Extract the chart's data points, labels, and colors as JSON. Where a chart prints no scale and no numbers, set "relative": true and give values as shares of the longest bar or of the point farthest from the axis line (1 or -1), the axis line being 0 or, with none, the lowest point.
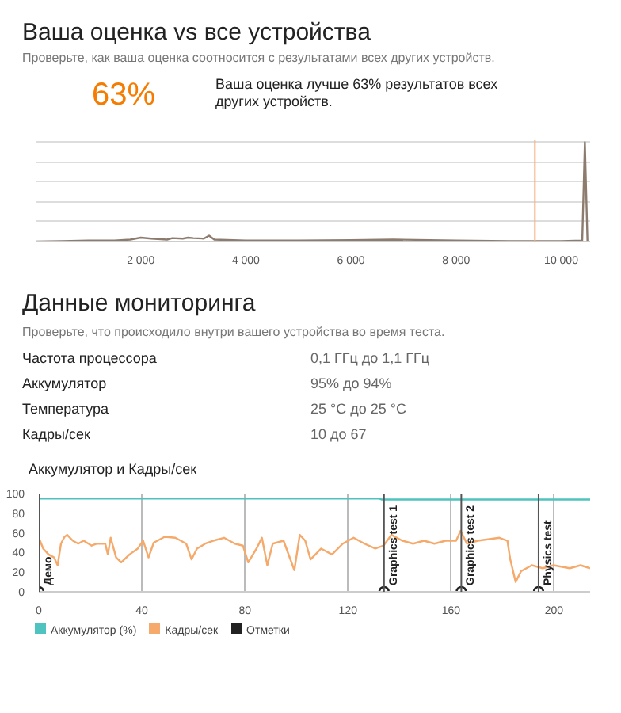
{
  "chart_data": [
    {
      "type": "line",
      "title": "Ваша оценка vs все устройства",
      "subtitle": "Проверьте, как ваша оценка соотносится с результатами всех других устройств.",
      "annotations": [
        "63%",
        "Ваша оценка лучше 63% результатов всех других устройств."
      ],
      "relative": true,
      "grid": "y",
      "xlim": [
        0,
        10550
      ],
      "xticks": [
        {
          "value": 2000,
          "label": "2 000"
        },
        {
          "value": 4000,
          "label": "4 000"
        },
        {
          "value": 6000,
          "label": "6 000"
        },
        {
          "value": 8000,
          "label": "8 000"
        },
        {
          "value": 10000,
          "label": "10 000"
        }
      ],
      "x": [
        0,
        500,
        1000,
        1500,
        1800,
        2000,
        2200,
        2500,
        2600,
        2800,
        2900,
        3000,
        3200,
        3300,
        3400,
        4000,
        5000,
        6000,
        6800,
        7500,
        8000,
        9000,
        10000,
        10400,
        10450,
        10500
      ],
      "series": [
        {
          "color": "#8d7b6e",
          "values": [
            0,
            0.005,
            0.01,
            0.01,
            0.02,
            0.04,
            0.03,
            0.02,
            0.035,
            0.03,
            0.04,
            0.035,
            0.03,
            0.06,
            0.02,
            0.01,
            0.01,
            0.015,
            0.02,
            0.015,
            0.01,
            0.005,
            0.005,
            0.01,
            1,
            0
          ]
        }
      ],
      "ref_lines": [
        {
          "axis": "x",
          "value": 9500,
          "color": "#f5b27a"
        }
      ]
    },
    {
      "type": "line",
      "title": "Данные мониторинга",
      "subtitle": "Проверьте, что происходило внутри вашего устройства во время теста.",
      "annotations": [
        "Частота процессора",
        "0,1 ГГц до 1,1 ГГц",
        "Аккумулятор",
        "95% до 94%",
        "Температура",
        "25 °C до 25 °C",
        "Кадры/сек",
        "10 до 67",
        "Аккумулятор и Кадры/сек"
      ],
      "xlim": [
        0,
        214
      ],
      "xticks": [
        0,
        40,
        80,
        120,
        160,
        200
      ],
      "ylim": [
        0,
        100
      ],
      "yticks": [
        0,
        20,
        40,
        60,
        80,
        100
      ],
      "grid": "x",
      "legend": "bottom",
      "series": [
        {
          "name": "Аккумулятор (%)",
          "color": "#4fc3c0",
          "x": [
            0,
            132,
            133,
            214
          ],
          "values": [
            95,
            95,
            94,
            94
          ]
        },
        {
          "name": "Кадры/сек",
          "color": "#f5a96a",
          "x": [
            0,
            1.7,
            3.8,
            5.9,
            7.3,
            8.6,
            10,
            11,
            13.2,
            15.3,
            17.4,
            20.5,
            22.6,
            25.8,
            26.8,
            27.9,
            30,
            32,
            35.2,
            38.4,
            40.5,
            42.6,
            44.6,
            48.9,
            53,
            57.2,
            59.3,
            61.4,
            64.6,
            67.7,
            71.9,
            76.1,
            79.2,
            81.3,
            84.5,
            86.6,
            88.7,
            90.8,
            95,
            99.2,
            101.3,
            103.4,
            105.5,
            109.6,
            113.8,
            118,
            122.2,
            126.4,
            130.6,
            133.8,
            136.9,
            141.1,
            145.3,
            149.5,
            153.6,
            157.9,
            162,
            163.7,
            166.2,
            170.4,
            178.8,
            181.9,
            183,
            185.1,
            187.2,
            191.4,
            195.6,
            199.8,
            206.1,
            210.3,
            214
          ],
          "values": [
            55,
            44,
            38,
            35,
            27,
            49,
            56,
            58,
            52,
            49,
            52,
            47,
            49,
            49,
            38,
            55,
            35,
            30,
            38,
            44,
            52,
            35,
            50,
            56,
            55,
            49,
            33,
            44,
            49,
            52,
            55,
            49,
            47,
            30,
            44,
            55,
            27,
            49,
            52,
            22,
            58,
            52,
            33,
            44,
            38,
            49,
            55,
            49,
            44,
            47,
            58,
            52,
            49,
            52,
            49,
            52,
            52,
            62,
            49,
            52,
            55,
            52,
            33,
            10,
            21,
            27,
            24,
            27,
            24,
            27,
            24
          ]
        },
        {
          "name": "Отметки",
          "type": "scatter",
          "marker": "circle",
          "color": "#222222",
          "x": [
            0,
            134,
            164,
            194
          ],
          "values": [
            0,
            0,
            0,
            0
          ]
        }
      ],
      "ref_lines": [
        {
          "axis": "x",
          "value": 0,
          "label": "Демо",
          "color": "#555555"
        },
        {
          "axis": "x",
          "value": 134,
          "label": "Graphics test 1",
          "color": "#555555"
        },
        {
          "axis": "x",
          "value": 164,
          "label": "Graphics test 2",
          "color": "#555555"
        },
        {
          "axis": "x",
          "value": 194,
          "label": "Physics test",
          "color": "#555555"
        }
      ]
    }
  ]
}
